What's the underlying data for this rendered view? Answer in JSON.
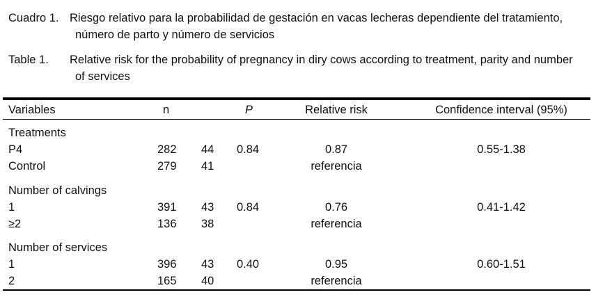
{
  "caption_es": {
    "label": "Cuadro 1.",
    "line1": "Riesgo relativo para la probabilidad de gestación en vacas lecheras dependiente del tratamiento,",
    "line2": "número de parto y número de servicios"
  },
  "caption_en": {
    "label": "Table 1.",
    "line1": "Relative risk for the probability of pregnancy in diry cows according to treatment, parity and number",
    "line2": "of services"
  },
  "table": {
    "headers": {
      "variables": "Variables",
      "n": "n",
      "p": "P",
      "relative_risk": "Relative risk",
      "confidence_interval": "Confidence interval (95%)"
    },
    "groups": [
      {
        "title": "Treatments",
        "rows": [
          {
            "variable": "P4",
            "n": "282",
            "value": "44",
            "p": "0.84",
            "rr": "0.87",
            "ci": "0.55-1.38"
          },
          {
            "variable": "Control",
            "n": "279",
            "value": "41",
            "p": "",
            "rr": "referencia",
            "ci": ""
          }
        ]
      },
      {
        "title": "Number of calvings",
        "rows": [
          {
            "variable": "1",
            "n": "391",
            "value": "43",
            "p": "0.84",
            "rr": "0.76",
            "ci": "0.41-1.42"
          },
          {
            "variable": "≥2",
            "n": "136",
            "value": "38",
            "p": "",
            "rr": "referencia",
            "ci": ""
          }
        ]
      },
      {
        "title": "Number of services",
        "rows": [
          {
            "variable": "1",
            "n": "396",
            "value": "43",
            "p": "0.40",
            "rr": "0.95",
            "ci": "0.60-1.51"
          },
          {
            "variable": "2",
            "n": "165",
            "value": "40",
            "p": "",
            "rr": "referencia",
            "ci": ""
          }
        ]
      }
    ]
  }
}
